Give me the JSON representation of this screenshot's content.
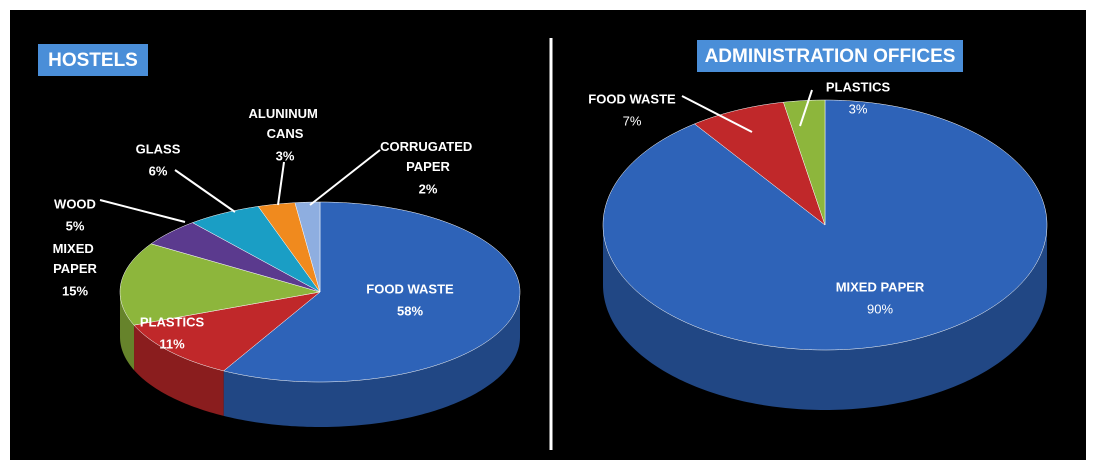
{
  "chart_data": [
    {
      "type": "pie",
      "title": "HOSTELS",
      "categories": [
        "FOOD WASTE",
        "PLASTICS",
        "MIXED PAPER",
        "WOOD",
        "GLASS",
        "ALUNINUM CANS",
        "CORRUGATED PAPER"
      ],
      "values": [
        58,
        11,
        15,
        5,
        6,
        3,
        2
      ],
      "value_labels": [
        "58%",
        "11%",
        "15%",
        "5%",
        "6%",
        "3%",
        "2%"
      ],
      "colors": [
        "#2e63b8",
        "#c0282a",
        "#8db63c",
        "#5b3a8e",
        "#1a9ec5",
        "#f08a1e",
        "#8eaee0"
      ]
    },
    {
      "type": "pie",
      "title": "ADMINISTRATION OFFICES",
      "categories": [
        "MIXED PAPER",
        "FOOD WASTE",
        "PLASTICS"
      ],
      "values": [
        90,
        7,
        3
      ],
      "value_labels": [
        "90%",
        "7%",
        "3%"
      ],
      "colors": [
        "#2e63b8",
        "#c0282a",
        "#8db63c"
      ]
    }
  ]
}
